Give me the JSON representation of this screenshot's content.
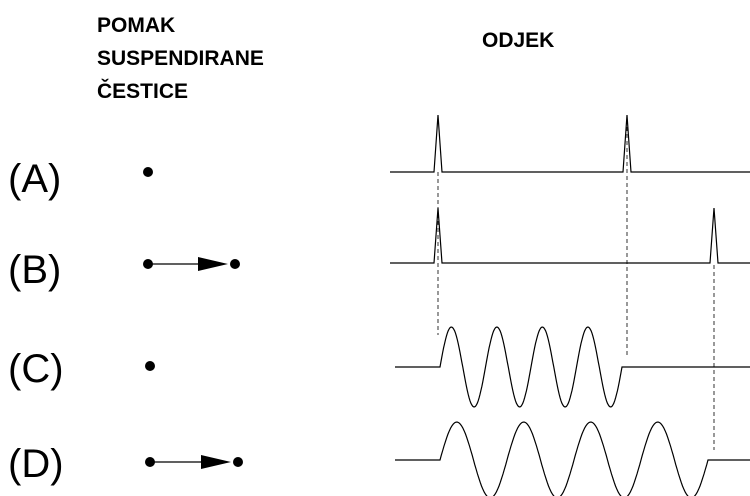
{
  "header": {
    "left_title": [
      "POMAK",
      "SUSPENDIRANE",
      "ČESTICE"
    ],
    "right_title": "ODJEK"
  },
  "rows": [
    {
      "label": "(A)"
    },
    {
      "label": "(B)"
    },
    {
      "label": "(C)"
    },
    {
      "label": "(D)"
    }
  ]
}
